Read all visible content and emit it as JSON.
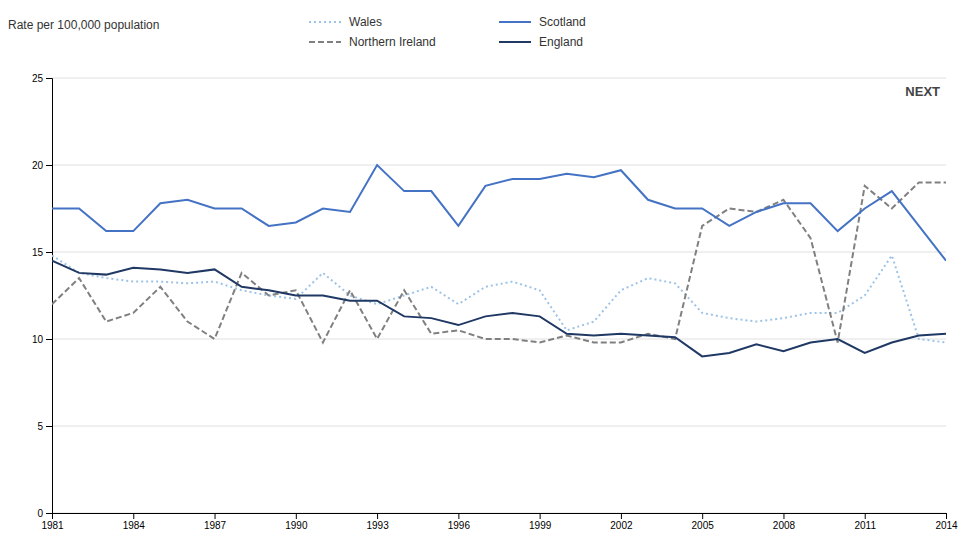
{
  "chart_data": {
    "type": "line",
    "ylabel": "Rate per 100,000 population",
    "annotations": [
      "NEXT"
    ],
    "x": [
      1981,
      1982,
      1983,
      1984,
      1985,
      1986,
      1987,
      1988,
      1989,
      1990,
      1991,
      1992,
      1993,
      1994,
      1995,
      1996,
      1997,
      1998,
      1999,
      2000,
      2001,
      2002,
      2003,
      2004,
      2005,
      2006,
      2007,
      2008,
      2009,
      2010,
      2011,
      2012,
      2013,
      2014
    ],
    "series": [
      {
        "name": "Wales",
        "color": "#9dc3e6",
        "line_style": "dotted",
        "values": [
          14.8,
          13.8,
          13.5,
          13.3,
          13.3,
          13.2,
          13.3,
          12.8,
          12.5,
          12.3,
          13.8,
          12.5,
          12.0,
          12.5,
          13.0,
          12.0,
          13.0,
          13.3,
          12.8,
          10.5,
          11.0,
          12.8,
          13.5,
          13.2,
          11.5,
          11.2,
          11.0,
          11.2,
          11.5,
          11.5,
          12.5,
          14.8,
          10.0,
          9.8
        ]
      },
      {
        "name": "Northern Ireland",
        "color": "#808080",
        "line_style": "dashed",
        "values": [
          12.0,
          13.5,
          11.0,
          11.5,
          13.0,
          11.0,
          10.0,
          13.8,
          12.5,
          12.8,
          9.8,
          12.8,
          10.0,
          12.8,
          10.3,
          10.5,
          10.0,
          10.0,
          9.8,
          10.2,
          9.8,
          9.8,
          10.3,
          10.0,
          16.5,
          17.5,
          17.3,
          18.0,
          15.8,
          9.8,
          18.8,
          17.5,
          19.0,
          19.0
        ]
      },
      {
        "name": "Scotland",
        "color": "#4472c4",
        "line_style": "solid",
        "values": [
          17.5,
          17.5,
          16.2,
          16.2,
          17.8,
          18.0,
          17.5,
          17.5,
          16.5,
          16.7,
          17.5,
          17.3,
          20.0,
          18.5,
          18.5,
          16.5,
          18.8,
          19.2,
          19.2,
          19.5,
          19.3,
          19.7,
          18.0,
          17.5,
          17.5,
          16.5,
          17.3,
          17.8,
          17.8,
          16.2,
          17.5,
          18.5,
          16.5,
          14.5
        ]
      },
      {
        "name": "England",
        "color": "#1f3864",
        "line_style": "solid",
        "values": [
          14.5,
          13.8,
          13.7,
          14.1,
          14.0,
          13.8,
          14.0,
          13.0,
          12.8,
          12.5,
          12.5,
          12.2,
          12.2,
          11.3,
          11.2,
          10.8,
          11.3,
          11.5,
          11.3,
          10.3,
          10.2,
          10.3,
          10.2,
          10.1,
          9.0,
          9.2,
          9.7,
          9.3,
          9.8,
          10.0,
          9.2,
          9.8,
          10.2,
          10.3
        ]
      }
    ],
    "xlim": [
      1981,
      2014
    ],
    "xticks": [
      1981,
      1984,
      1987,
      1990,
      1993,
      1996,
      1999,
      2002,
      2005,
      2008,
      2011,
      2014
    ],
    "ylim": [
      0,
      25
    ],
    "yticks": [
      0,
      5,
      10,
      15,
      20,
      25
    ],
    "grid": true,
    "legend": "top"
  }
}
